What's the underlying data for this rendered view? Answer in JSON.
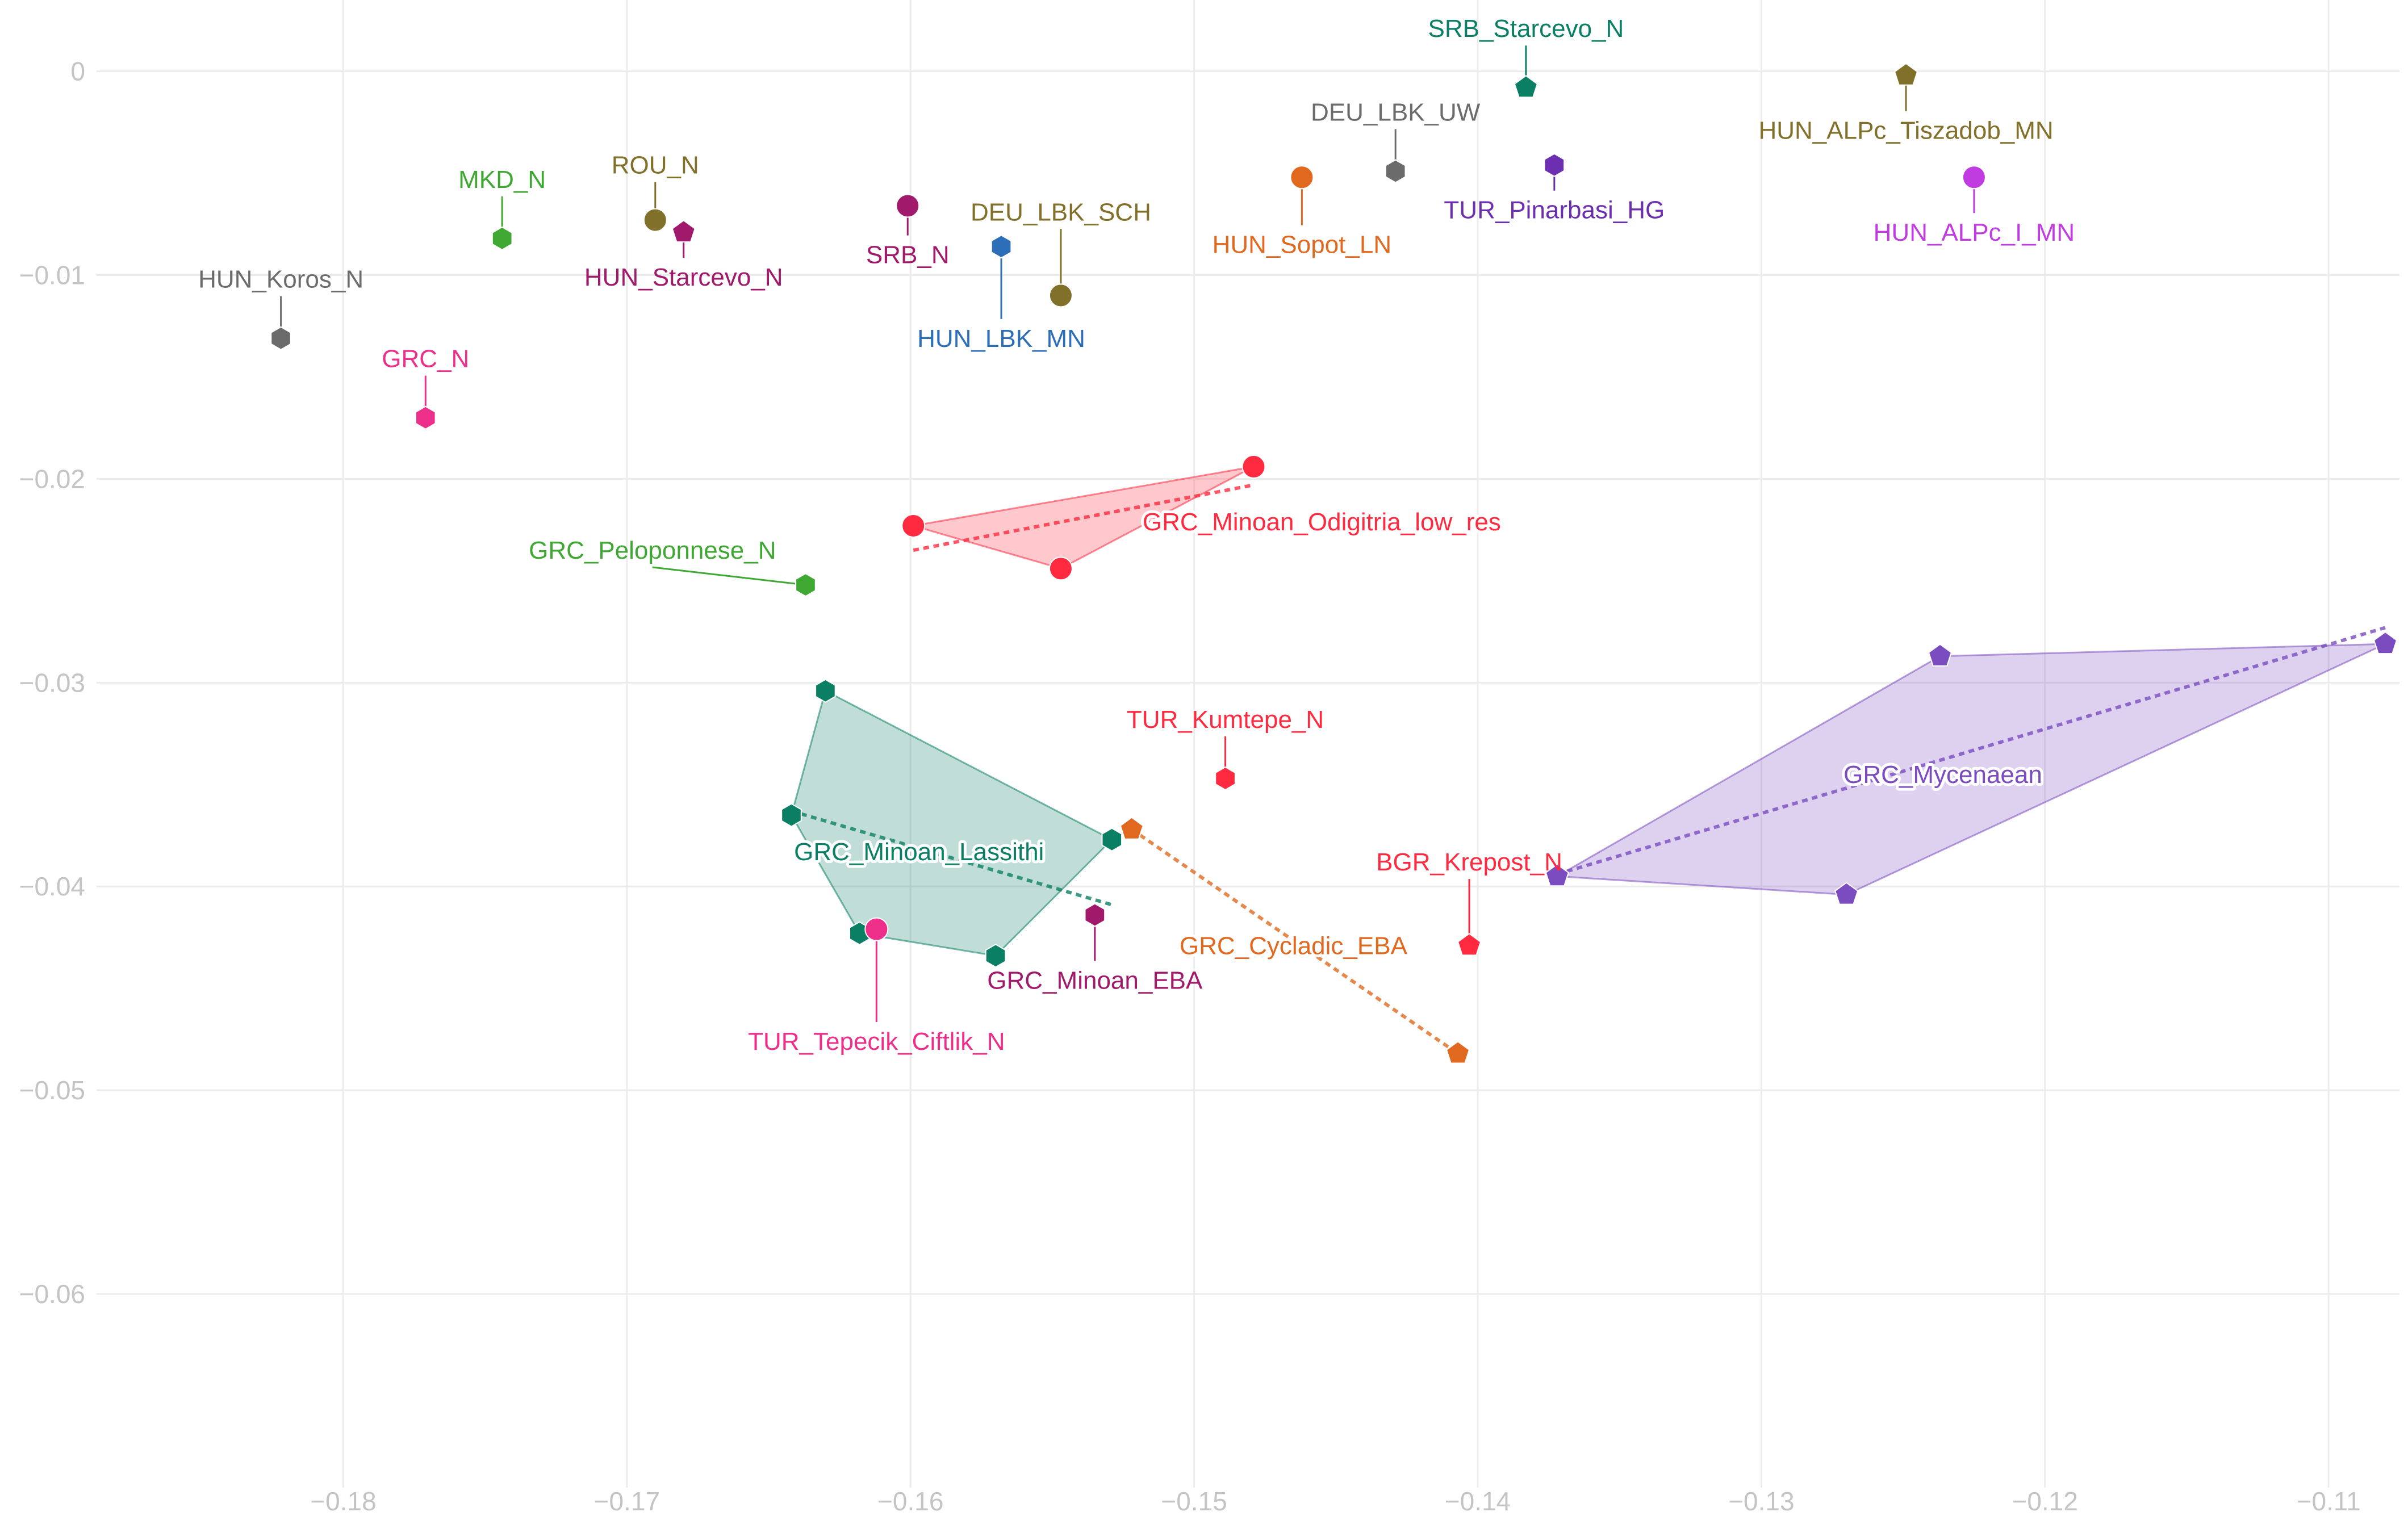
{
  "chart_data": {
    "type": "scatter",
    "title": "",
    "xlabel": "",
    "ylabel": "",
    "xlim": [
      -0.1885,
      -0.1075
    ],
    "ylim": [
      -0.0695,
      0.0035
    ],
    "x_ticks": [
      -0.18,
      -0.17,
      -0.16,
      -0.15,
      -0.14,
      -0.13,
      -0.12,
      -0.11
    ],
    "x_tick_labels": [
      "−0.18",
      "−0.17",
      "−0.16",
      "−0.15",
      "−0.14",
      "−0.13",
      "−0.12",
      "−0.11"
    ],
    "y_ticks": [
      0,
      -0.01,
      -0.02,
      -0.03,
      -0.04,
      -0.05,
      -0.06
    ],
    "y_tick_labels": [
      "0",
      "−0.01",
      "−0.02",
      "−0.03",
      "−0.04",
      "−0.05",
      "−0.06"
    ],
    "grid": true,
    "legend": "none",
    "points": [
      {
        "name": "HUN_Koros_N",
        "x": -0.1822,
        "y": -0.0131,
        "color": "#6b6b6b",
        "symbol": "hexagon",
        "label_x": -0.1822,
        "label_y": -0.0102
      },
      {
        "name": "GRC_N",
        "x": -0.1771,
        "y": -0.017,
        "color": "#ee2f8a",
        "symbol": "hexagon",
        "label_x": -0.1771,
        "label_y": -0.0141
      },
      {
        "name": "MKD_N",
        "x": -0.1744,
        "y": -0.0082,
        "color": "#3ea832",
        "symbol": "hexagon",
        "label_x": -0.1744,
        "label_y": -0.0053
      },
      {
        "name": "ROU_N",
        "x": -0.169,
        "y": -0.0073,
        "color": "#80702a",
        "symbol": "circle",
        "label_x": -0.169,
        "label_y": -0.0046
      },
      {
        "name": "HUN_Starcevo_N",
        "x": -0.168,
        "y": -0.0079,
        "color": "#a0196a",
        "symbol": "pentagon",
        "label_x": -0.168,
        "label_y": -0.0101
      },
      {
        "name": "SRB_N",
        "x": -0.1601,
        "y": -0.0066,
        "color": "#a0196a",
        "symbol": "circle",
        "label_x": -0.1601,
        "label_y": -0.009
      },
      {
        "name": "HUN_LBK_MN",
        "x": -0.1568,
        "y": -0.0086,
        "color": "#2c6fb8",
        "symbol": "hexagon",
        "label_x": -0.1568,
        "label_y": -0.0131
      },
      {
        "name": "DEU_LBK_SCH",
        "x": -0.1547,
        "y": -0.011,
        "color": "#80702a",
        "symbol": "circle",
        "label_x": -0.1547,
        "label_y": -0.0069
      },
      {
        "name": "HUN_Sopot_LN",
        "x": -0.1462,
        "y": -0.0052,
        "color": "#e0691f",
        "symbol": "circle",
        "label_x": -0.1462,
        "label_y": -0.0085
      },
      {
        "name": "DEU_LBK_UW",
        "x": -0.1429,
        "y": -0.0049,
        "color": "#6b6b6b",
        "symbol": "hexagon",
        "label_x": -0.1429,
        "label_y": -0.002
      },
      {
        "name": "SRB_Starcevo_N",
        "x": -0.1383,
        "y": -0.0008,
        "color": "#0b7f63",
        "symbol": "pentagon",
        "label_x": -0.1383,
        "label_y": 0.0021
      },
      {
        "name": "TUR_Pinarbasi_HG",
        "x": -0.1373,
        "y": -0.0046,
        "color": "#6b2fb0",
        "symbol": "hexagon",
        "label_x": -0.1373,
        "label_y": -0.0068
      },
      {
        "name": "HUN_ALPc_Tiszadob_MN",
        "x": -0.1249,
        "y": -0.0002,
        "color": "#80702a",
        "symbol": "pentagon",
        "label_x": -0.1249,
        "label_y": -0.0029
      },
      {
        "name": "HUN_ALPc_I_MN",
        "x": -0.1225,
        "y": -0.0052,
        "color": "#c03ce0",
        "symbol": "circle",
        "label_x": -0.1225,
        "label_y": -0.0079
      },
      {
        "name": "GRC_Peloponnese_N",
        "x": -0.1637,
        "y": -0.0252,
        "color": "#3ea832",
        "symbol": "hexagon",
        "label_x": -0.1691,
        "label_y": -0.0235
      },
      {
        "name": "TUR_Kumtepe_N",
        "x": -0.1489,
        "y": -0.0347,
        "color": "#ff2a3f",
        "symbol": "hexagon",
        "label_x": -0.1489,
        "label_y": -0.0318
      },
      {
        "name": "BGR_Krepost_N",
        "x": -0.1403,
        "y": -0.0429,
        "color": "#ff2a3f",
        "symbol": "pentagon",
        "label_x": -0.1403,
        "label_y": -0.0388
      },
      {
        "name": "TUR_Tepecik_Ciftlik_N",
        "x": -0.1612,
        "y": -0.0421,
        "color": "#ee2f8a",
        "symbol": "circle",
        "label_x": -0.1612,
        "label_y": -0.0476
      },
      {
        "name": "GRC_Minoan_EBA",
        "x": -0.1535,
        "y": -0.0414,
        "color": "#a0196a",
        "symbol": "hexagon",
        "label_x": -0.1535,
        "label_y": -0.0446
      }
    ],
    "groups": [
      {
        "name": "GRC_Minoan_Odigitria_low_res",
        "color": "#ff2a3f",
        "symbol": "circle",
        "points": [
          {
            "x": -0.1599,
            "y": -0.0223
          },
          {
            "x": -0.1479,
            "y": -0.0194
          },
          {
            "x": -0.1547,
            "y": -0.0244
          }
        ],
        "trend": [
          {
            "x": -0.1599,
            "y": -0.0235
          },
          {
            "x": -0.1479,
            "y": -0.0203
          }
        ],
        "label_x": -0.1455,
        "label_y": -0.0221
      },
      {
        "name": "GRC_Minoan_Lassithi",
        "color": "#0b7f63",
        "symbol": "hexagon",
        "points": [
          {
            "x": -0.163,
            "y": -0.0304
          },
          {
            "x": -0.1642,
            "y": -0.0365
          },
          {
            "x": -0.1618,
            "y": -0.0423
          },
          {
            "x": -0.157,
            "y": -0.0434
          },
          {
            "x": -0.1529,
            "y": -0.0377
          }
        ],
        "trend": [
          {
            "x": -0.1642,
            "y": -0.0363
          },
          {
            "x": -0.1529,
            "y": -0.0409
          }
        ],
        "label_x": -0.1597,
        "label_y": -0.0383
      },
      {
        "name": "GRC_Cycladic_EBA",
        "color": "#e0691f",
        "symbol": "pentagon",
        "points": [
          {
            "x": -0.1522,
            "y": -0.0372
          },
          {
            "x": -0.1407,
            "y": -0.0482
          }
        ],
        "trend": [
          {
            "x": -0.1522,
            "y": -0.0372
          },
          {
            "x": -0.1407,
            "y": -0.0482
          }
        ],
        "label_x": -0.1465,
        "label_y": -0.0429
      },
      {
        "name": "GRC_Mycenaean",
        "color": "#7a4cc0",
        "symbol": "pentagon",
        "points": [
          {
            "x": -0.1372,
            "y": -0.0395
          },
          {
            "x": -0.1237,
            "y": -0.0287
          },
          {
            "x": -0.108,
            "y": -0.0281
          },
          {
            "x": -0.127,
            "y": -0.0404
          }
        ],
        "trend": [
          {
            "x": -0.1372,
            "y": -0.0394
          },
          {
            "x": -0.108,
            "y": -0.0273
          }
        ],
        "label_x": -0.1236,
        "label_y": -0.0345
      }
    ]
  }
}
